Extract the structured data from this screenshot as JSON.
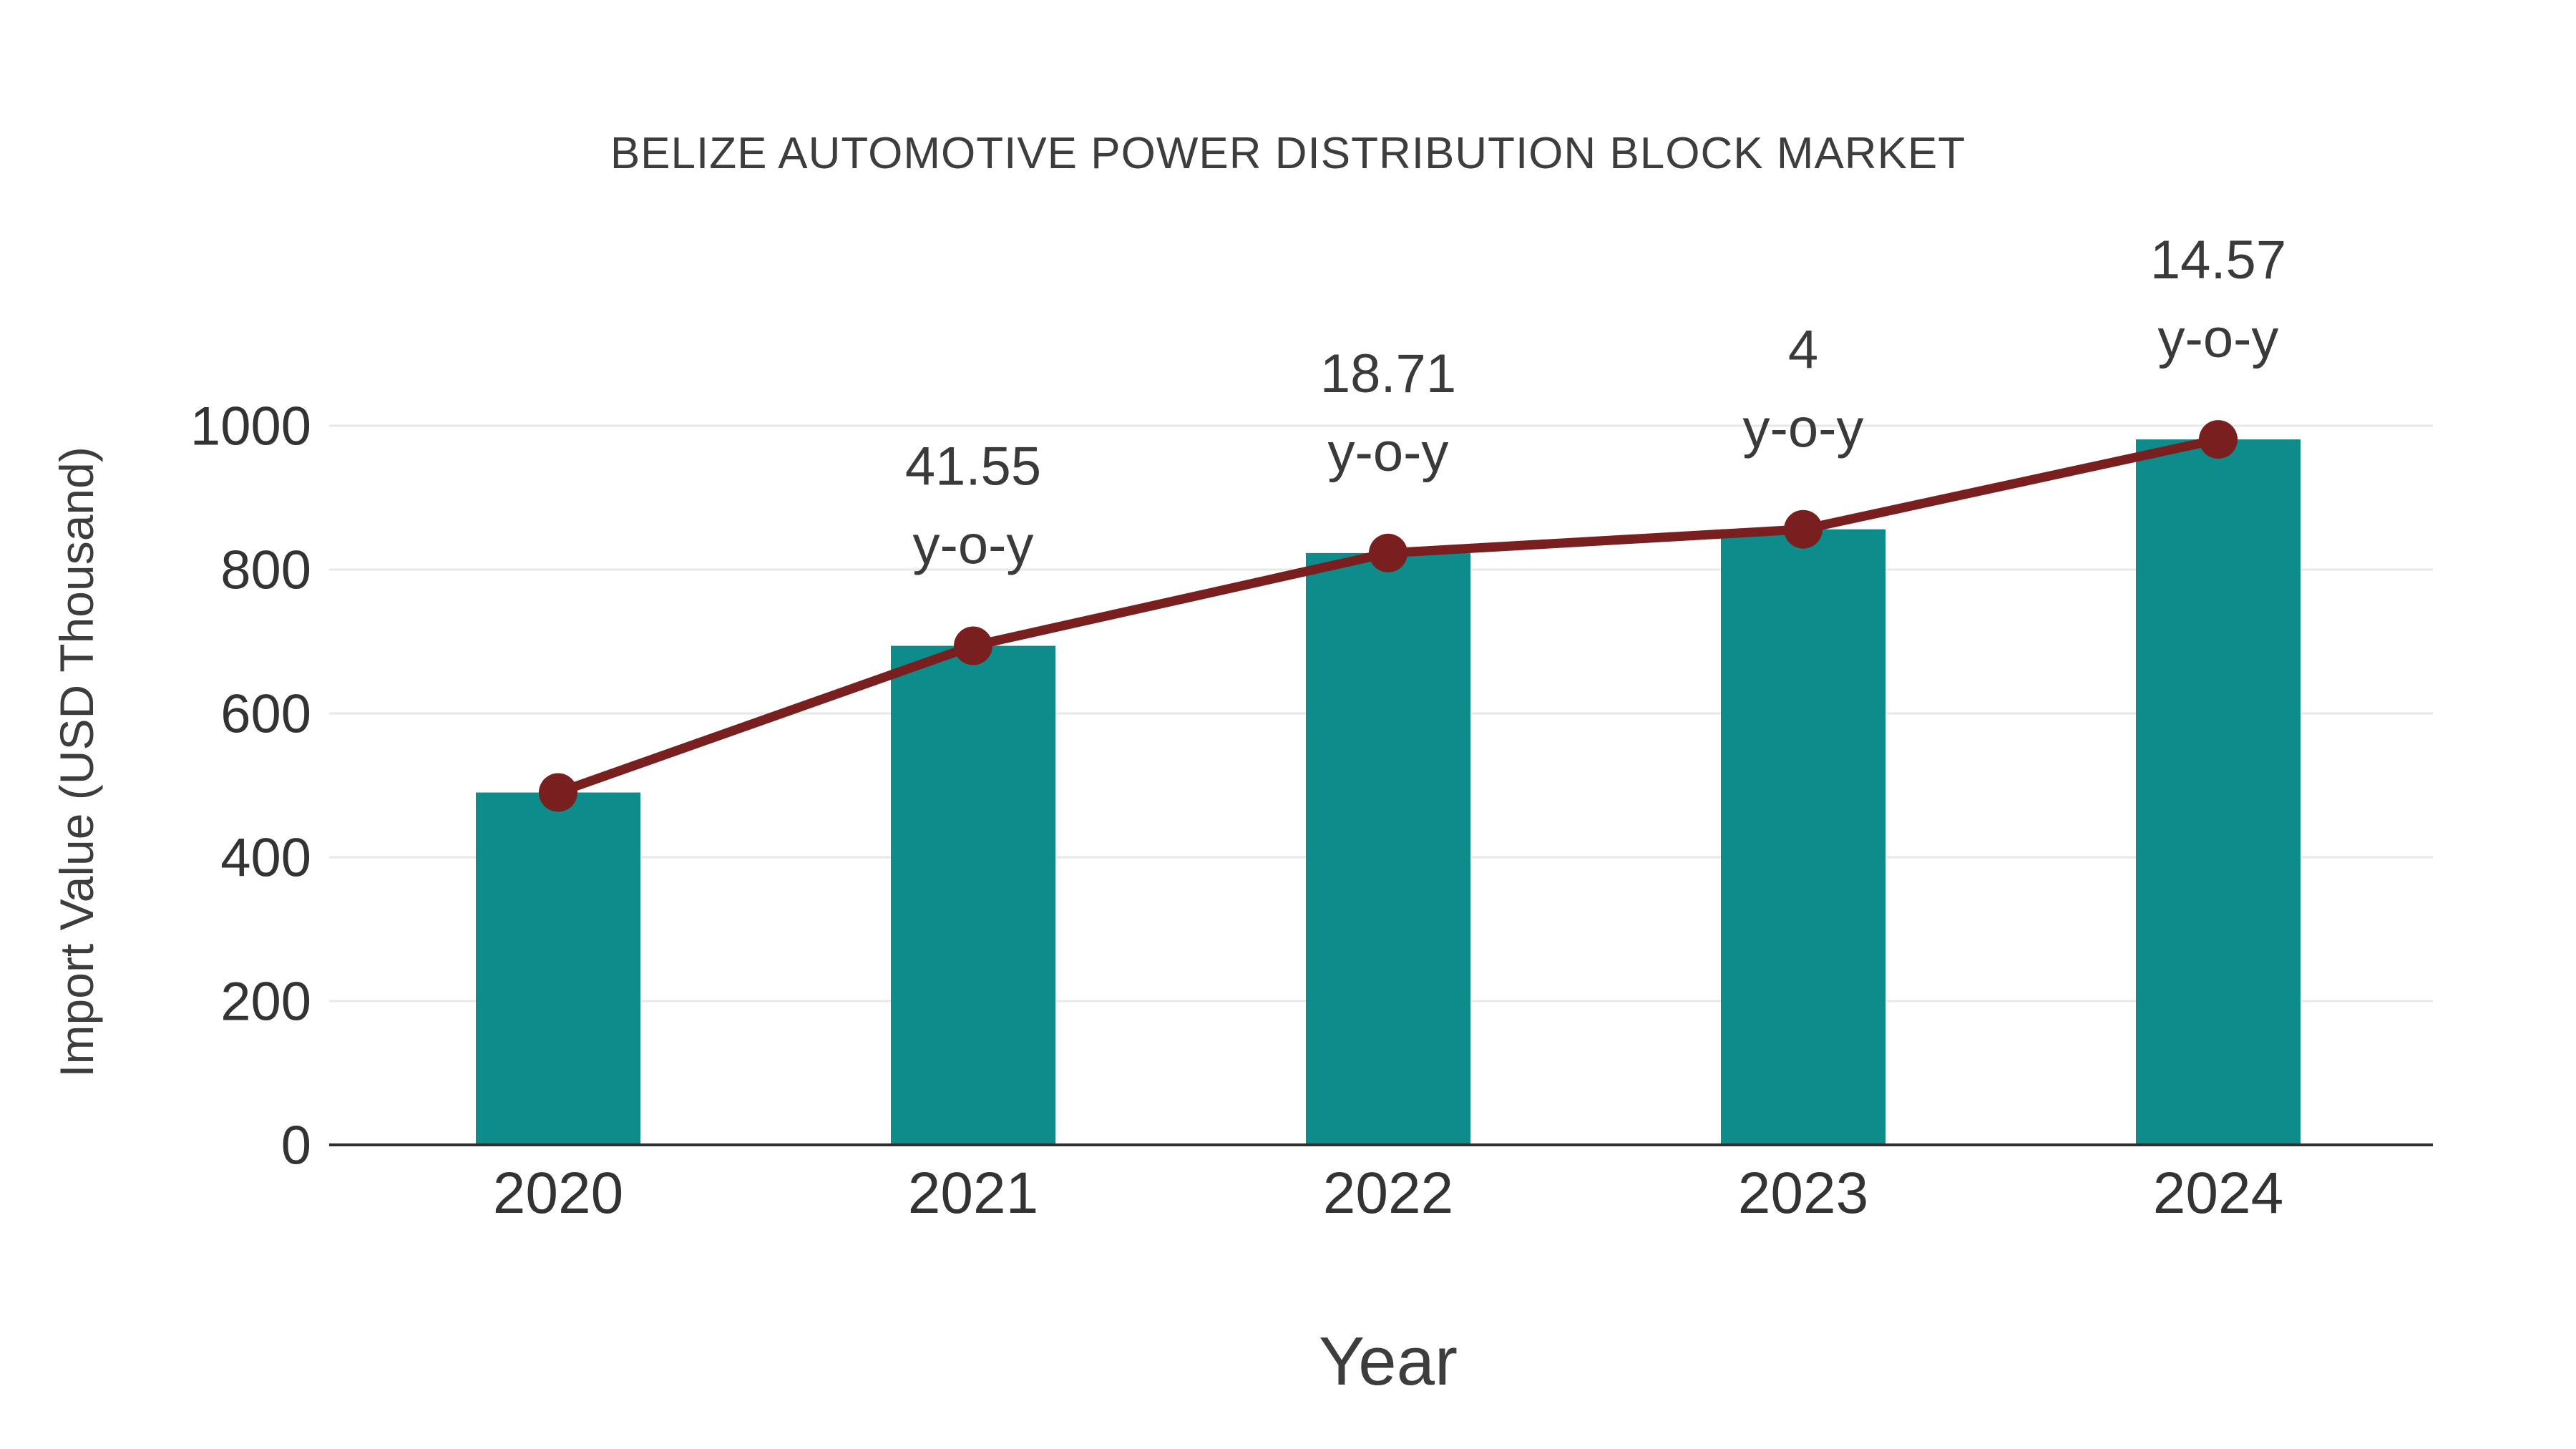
{
  "chart_data": {
    "type": "bar",
    "title": "BELIZE AUTOMOTIVE POWER DISTRIBUTION BLOCK MARKET",
    "xlabel": "Year",
    "ylabel": "Import Value (USD Thousand)",
    "categories": [
      "2020",
      "2021",
      "2022",
      "2023",
      "2024"
    ],
    "series": [
      {
        "name": "Import Value (bars)",
        "type": "bar",
        "color": "#0e8c8c",
        "values": [
          490,
          694,
          823,
          856,
          981
        ]
      },
      {
        "name": "Import Value trend",
        "type": "line",
        "color": "#7a1f1f",
        "values": [
          490,
          694,
          823,
          856,
          981
        ]
      }
    ],
    "annotations": [
      {
        "category": "2021",
        "lines": [
          "41.55",
          "y-o-y"
        ]
      },
      {
        "category": "2022",
        "lines": [
          "18.71",
          "y-o-y"
        ]
      },
      {
        "category": "2023",
        "lines": [
          "4",
          "y-o-y"
        ]
      },
      {
        "category": "2024",
        "lines": [
          "14.57",
          "y-o-y"
        ]
      }
    ],
    "ylim": [
      0,
      1000
    ],
    "yticks": [
      0,
      200,
      400,
      600,
      800,
      1000
    ],
    "grid": true,
    "legend": false
  },
  "colors": {
    "bar": "#0e8c8c",
    "line": "#7a1f1f",
    "marker": "#7a1f1f",
    "grid": "#e8e8e8",
    "axis": "#2f2f2f",
    "text": "#3d3d3d"
  }
}
